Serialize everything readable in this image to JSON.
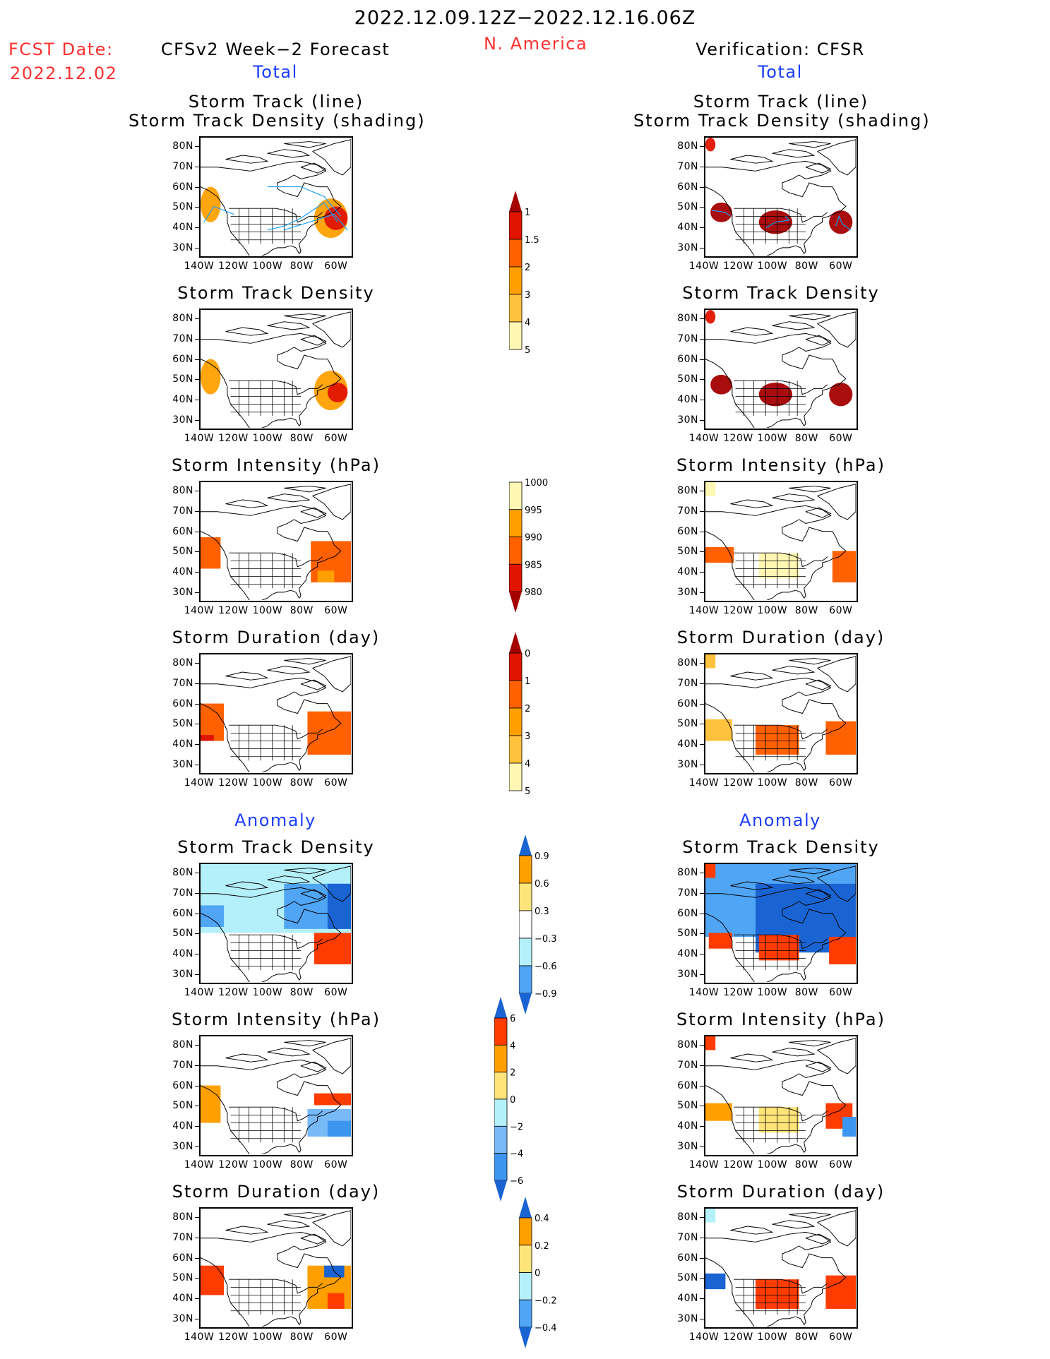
{
  "header": {
    "period": "2022.12.09.12Z−2022.12.16.06Z",
    "region": "N. America",
    "fcst_date_label": "FCST Date:",
    "fcst_date_value": "2022.12.02",
    "left_title": "CFSv2 Week−2 Forecast",
    "right_title": "Verification: CFSR",
    "section_total": "Total",
    "section_anomaly": "Anomaly"
  },
  "colors": {
    "title_red": "#ff3030",
    "section_blue": "#1a3cff",
    "track_line": "#1aa0ff"
  },
  "axes": {
    "lat_ticks": [
      "80N",
      "70N",
      "60N",
      "50N",
      "40N",
      "30N"
    ],
    "lon_ticks": [
      "140W",
      "120W",
      "100W",
      "80W",
      "60W"
    ]
  },
  "panel_titles": {
    "track_line": "Storm Track (line)",
    "track_density_shading": "Storm Track Density (shading)",
    "track_density": "Storm Track Density",
    "intensity": "Storm Intensity (hPa)",
    "duration": "Storm Duration (day)"
  },
  "chart_data": [
    {
      "type": "heatmap",
      "id": "colorbar-track-density",
      "title": "Storm Track Density colorbar",
      "levels": [
        "1",
        "1.5",
        "2",
        "3",
        "4",
        "5"
      ],
      "colors": [
        "#fff7b3",
        "#ffc23c",
        "#ffa000",
        "#ff6000",
        "#e01400",
        "#a50000"
      ],
      "extend": "max"
    },
    {
      "type": "heatmap",
      "id": "colorbar-intensity",
      "title": "Storm Intensity colorbar (hPa)",
      "levels": [
        "1000",
        "995",
        "990",
        "985",
        "980"
      ],
      "colors": [
        "#fff7b3",
        "#ffa000",
        "#ff6000",
        "#e01400",
        "#a50000"
      ],
      "extend": "min"
    },
    {
      "type": "heatmap",
      "id": "colorbar-duration",
      "title": "Storm Duration colorbar (day)",
      "levels": [
        "0",
        "1",
        "2",
        "3",
        "4",
        "5"
      ],
      "colors": [
        "#fff7b3",
        "#ffc23c",
        "#ffa000",
        "#ff6000",
        "#e01400",
        "#a50000"
      ],
      "extend": "max"
    },
    {
      "type": "heatmap",
      "id": "colorbar-density-anom",
      "title": "Storm Track Density anomaly colorbar",
      "levels": [
        "0.9",
        "0.6",
        "0.3",
        "−0.3",
        "−0.6",
        "−0.9"
      ],
      "colors": [
        "#ff3c00",
        "#ffa000",
        "#ffe47a",
        "#ffffff",
        "#b4f0fa",
        "#50a5f5",
        "#1964d2"
      ],
      "extend": "both"
    },
    {
      "type": "heatmap",
      "id": "colorbar-intensity-anom",
      "title": "Storm Intensity anomaly colorbar (hPa)",
      "levels": [
        "6",
        "4",
        "2",
        "0",
        "−2",
        "−4",
        "−6"
      ],
      "colors": [
        "#a50000",
        "#ff3c00",
        "#ffa000",
        "#ffe47a",
        "#b4f0fa",
        "#78b9f8",
        "#3c96f0",
        "#1964d2"
      ],
      "extend": "both"
    },
    {
      "type": "heatmap",
      "id": "colorbar-duration-anom",
      "title": "Storm Duration anomaly colorbar (day)",
      "levels": [
        "0.4",
        "0.2",
        "0",
        "−0.2",
        "−0.4"
      ],
      "colors": [
        "#ff3c00",
        "#ffa000",
        "#ffe47a",
        "#b4f0fa",
        "#50a5f5",
        "#1964d2"
      ],
      "extend": "both"
    }
  ],
  "panels": [
    {
      "id": "fc-track",
      "column": "forecast",
      "title_key": "track",
      "regions": [
        {
          "lon": [
            -140,
            -128
          ],
          "lat": [
            42,
            60
          ],
          "color": "#ffa000"
        },
        {
          "lon": [
            -72,
            -52
          ],
          "lat": [
            34,
            54
          ],
          "color": "#ffa000"
        },
        {
          "lon": [
            -66,
            -52
          ],
          "lat": [
            38,
            50
          ],
          "color": "#e01400"
        }
      ]
    },
    {
      "id": "vf-track",
      "column": "verification",
      "title_key": "track",
      "regions": [
        {
          "lon": [
            -137,
            -124
          ],
          "lat": [
            42,
            52
          ],
          "color": "#a50000"
        },
        {
          "lon": [
            -108,
            -88
          ],
          "lat": [
            36,
            48
          ],
          "color": "#a50000"
        },
        {
          "lon": [
            -66,
            -52
          ],
          "lat": [
            36,
            48
          ],
          "color": "#a50000"
        },
        {
          "lon": [
            -140,
            -134
          ],
          "lat": [
            78,
            85
          ],
          "color": "#e01400"
        }
      ]
    },
    {
      "id": "fc-density",
      "column": "forecast",
      "regions": [
        {
          "lon": [
            -140,
            -128
          ],
          "lat": [
            42,
            60
          ],
          "color": "#ffa000"
        },
        {
          "lon": [
            -72,
            -52
          ],
          "lat": [
            34,
            54
          ],
          "color": "#ffa000"
        },
        {
          "lon": [
            -64,
            -52
          ],
          "lat": [
            38,
            48
          ],
          "color": "#e01400"
        }
      ]
    },
    {
      "id": "vf-density",
      "column": "verification",
      "regions": [
        {
          "lon": [
            -137,
            -124
          ],
          "lat": [
            42,
            52
          ],
          "color": "#a50000"
        },
        {
          "lon": [
            -108,
            -88
          ],
          "lat": [
            36,
            48
          ],
          "color": "#a50000"
        },
        {
          "lon": [
            -66,
            -52
          ],
          "lat": [
            36,
            48
          ],
          "color": "#a50000"
        },
        {
          "lon": [
            -140,
            -134
          ],
          "lat": [
            78,
            85
          ],
          "color": "#e01400"
        }
      ]
    },
    {
      "id": "fc-intensity",
      "column": "forecast",
      "regions": [
        {
          "lon": [
            -140,
            -128
          ],
          "lat": [
            41,
            57
          ],
          "color": "#ff6000"
        },
        {
          "lon": [
            -74,
            -50
          ],
          "lat": [
            34,
            55
          ],
          "color": "#ff6000"
        },
        {
          "lon": [
            -70,
            -60
          ],
          "lat": [
            34,
            40
          ],
          "color": "#ffa000"
        }
      ]
    },
    {
      "id": "vf-intensity",
      "column": "verification",
      "regions": [
        {
          "lon": [
            -140,
            -123
          ],
          "lat": [
            44,
            52
          ],
          "color": "#ff6000"
        },
        {
          "lon": [
            -108,
            -84
          ],
          "lat": [
            36,
            49
          ],
          "color": "#fff7b3"
        },
        {
          "lon": [
            -64,
            -50
          ],
          "lat": [
            34,
            50
          ],
          "color": "#ff6000"
        },
        {
          "lon": [
            -140,
            -134
          ],
          "lat": [
            78,
            85
          ],
          "color": "#fff7b3"
        }
      ]
    },
    {
      "id": "fc-duration",
      "column": "forecast",
      "regions": [
        {
          "lon": [
            -140,
            -126
          ],
          "lat": [
            41,
            60
          ],
          "color": "#ff6000"
        },
        {
          "lon": [
            -76,
            -50
          ],
          "lat": [
            34,
            56
          ],
          "color": "#ff6000"
        },
        {
          "lon": [
            -140,
            -132
          ],
          "lat": [
            41,
            44
          ],
          "color": "#e01400"
        }
      ]
    },
    {
      "id": "vf-duration",
      "column": "verification",
      "regions": [
        {
          "lon": [
            -140,
            -124
          ],
          "lat": [
            41,
            52
          ],
          "color": "#ffc23c"
        },
        {
          "lon": [
            -110,
            -84
          ],
          "lat": [
            34,
            49
          ],
          "color": "#ff6000"
        },
        {
          "lon": [
            -68,
            -50
          ],
          "lat": [
            34,
            51
          ],
          "color": "#ff6000"
        },
        {
          "lon": [
            -140,
            -134
          ],
          "lat": [
            78,
            85
          ],
          "color": "#ffc23c"
        }
      ]
    },
    {
      "id": "fc-density-anom",
      "column": "forecast",
      "regions": [
        {
          "lon": [
            -140,
            -50
          ],
          "lat": [
            50,
            85
          ],
          "color": "#b4f0fa"
        },
        {
          "lon": [
            -90,
            -50
          ],
          "lat": [
            52,
            75
          ],
          "color": "#50a5f5"
        },
        {
          "lon": [
            -64,
            -50
          ],
          "lat": [
            52,
            75
          ],
          "color": "#1964d2"
        },
        {
          "lon": [
            -140,
            -126
          ],
          "lat": [
            53,
            64
          ],
          "color": "#50a5f5"
        },
        {
          "lon": [
            -72,
            -50
          ],
          "lat": [
            34,
            50
          ],
          "color": "#ff3c00"
        }
      ]
    },
    {
      "id": "vf-density-anom",
      "column": "verification",
      "regions": [
        {
          "lon": [
            -140,
            -50
          ],
          "lat": [
            48,
            85
          ],
          "color": "#50a5f5"
        },
        {
          "lon": [
            -110,
            -50
          ],
          "lat": [
            40,
            75
          ],
          "color": "#1964d2"
        },
        {
          "lon": [
            -138,
            -124
          ],
          "lat": [
            42,
            50
          ],
          "color": "#ff3c00"
        },
        {
          "lon": [
            -108,
            -84
          ],
          "lat": [
            36,
            49
          ],
          "color": "#ff3c00"
        },
        {
          "lon": [
            -66,
            -50
          ],
          "lat": [
            34,
            48
          ],
          "color": "#ff3c00"
        },
        {
          "lon": [
            -140,
            -134
          ],
          "lat": [
            78,
            85
          ],
          "color": "#ff3c00"
        }
      ]
    },
    {
      "id": "fc-intensity-anom",
      "column": "forecast",
      "regions": [
        {
          "lon": [
            -140,
            -128
          ],
          "lat": [
            41,
            60
          ],
          "color": "#ffa000"
        },
        {
          "lon": [
            -72,
            -50
          ],
          "lat": [
            50,
            56
          ],
          "color": "#ff3c00"
        },
        {
          "lon": [
            -76,
            -50
          ],
          "lat": [
            34,
            48
          ],
          "color": "#78b9f8"
        },
        {
          "lon": [
            -64,
            -50
          ],
          "lat": [
            34,
            42
          ],
          "color": "#3c96f0"
        }
      ]
    },
    {
      "id": "vf-intensity-anom",
      "column": "verification",
      "regions": [
        {
          "lon": [
            -140,
            -124
          ],
          "lat": [
            42,
            51
          ],
          "color": "#ffa000"
        },
        {
          "lon": [
            -108,
            -84
          ],
          "lat": [
            36,
            49
          ],
          "color": "#ffe47a"
        },
        {
          "lon": [
            -68,
            -52
          ],
          "lat": [
            38,
            51
          ],
          "color": "#ff3c00"
        },
        {
          "lon": [
            -58,
            -50
          ],
          "lat": [
            34,
            44
          ],
          "color": "#3c96f0"
        },
        {
          "lon": [
            -140,
            -134
          ],
          "lat": [
            78,
            85
          ],
          "color": "#ff3c00"
        }
      ]
    },
    {
      "id": "fc-duration-anom",
      "column": "forecast",
      "regions": [
        {
          "lon": [
            -140,
            -126
          ],
          "lat": [
            41,
            56
          ],
          "color": "#ff3c00"
        },
        {
          "lon": [
            -76,
            -50
          ],
          "lat": [
            34,
            56
          ],
          "color": "#ffa000"
        },
        {
          "lon": [
            -66,
            -54
          ],
          "lat": [
            50,
            56
          ],
          "color": "#1964d2"
        },
        {
          "lon": [
            -64,
            -54
          ],
          "lat": [
            34,
            42
          ],
          "color": "#ff3c00"
        }
      ]
    },
    {
      "id": "vf-duration-anom",
      "column": "verification",
      "regions": [
        {
          "lon": [
            -140,
            -128
          ],
          "lat": [
            44,
            52
          ],
          "color": "#1964d2"
        },
        {
          "lon": [
            -110,
            -84
          ],
          "lat": [
            34,
            49
          ],
          "color": "#ff3c00"
        },
        {
          "lon": [
            -68,
            -50
          ],
          "lat": [
            34,
            51
          ],
          "color": "#ff3c00"
        },
        {
          "lon": [
            -140,
            -134
          ],
          "lat": [
            78,
            85
          ],
          "color": "#b4f0fa"
        }
      ]
    }
  ]
}
